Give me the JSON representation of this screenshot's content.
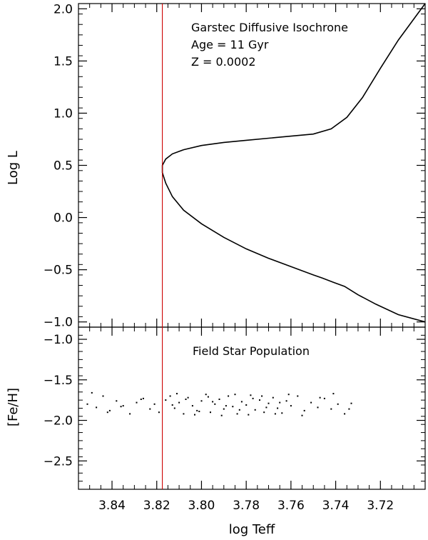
{
  "chart_data": [
    {
      "type": "line",
      "panel": "top",
      "ylabel": "Log L",
      "xlim": [
        3.855,
        3.7
      ],
      "ylim": [
        -1.05,
        2.05
      ],
      "x_reversed": true,
      "yticks": [
        -1.0,
        -0.5,
        0.0,
        0.5,
        1.0,
        1.5,
        2.0
      ],
      "ytick_labels": [
        "−1.0",
        "−0.5",
        "0.0",
        "0.5",
        "1.0",
        "1.5",
        "2.0"
      ],
      "annotations": [
        "Garstec Diffusive Isochrone",
        "Age = 11 Gyr",
        "Z = 0.0002"
      ],
      "series": [
        {
          "color": "#000000",
          "x": [
            3.7,
            3.712,
            3.722,
            3.73,
            3.736,
            3.741,
            3.746,
            3.75,
            3.76,
            3.77,
            3.78,
            3.79,
            3.8,
            3.808,
            3.813,
            3.816,
            3.8175,
            3.8175,
            3.816,
            3.813,
            3.808,
            3.8,
            3.79,
            3.78,
            3.77,
            3.76,
            3.75,
            3.742,
            3.735,
            3.728,
            3.72,
            3.712,
            3.7
          ],
          "y": [
            -1.0,
            -0.93,
            -0.83,
            -0.74,
            -0.66,
            -0.62,
            -0.58,
            -0.55,
            -0.47,
            -0.39,
            -0.3,
            -0.19,
            -0.06,
            0.07,
            0.2,
            0.33,
            0.43,
            0.5,
            0.56,
            0.61,
            0.65,
            0.69,
            0.72,
            0.74,
            0.76,
            0.78,
            0.8,
            0.85,
            0.96,
            1.15,
            1.43,
            1.7,
            2.05
          ]
        }
      ],
      "reference_line": {
        "x": 3.8175,
        "color": "#cc0000"
      }
    },
    {
      "type": "scatter",
      "panel": "bottom",
      "title": "Field Star Population",
      "xlabel": "log Teff",
      "ylabel": "[Fe/H]",
      "xlim": [
        3.855,
        3.7
      ],
      "ylim": [
        -2.85,
        -0.85
      ],
      "x_reversed": true,
      "xticks": [
        3.84,
        3.82,
        3.8,
        3.78,
        3.76,
        3.74,
        3.72
      ],
      "xtick_labels": [
        "3.84",
        "3.82",
        "3.80",
        "3.78",
        "3.76",
        "3.74",
        "3.72"
      ],
      "yticks": [
        -2.5,
        -2.0,
        -1.5,
        -1.0
      ],
      "ytick_labels": [
        "−2.5",
        "−2.0",
        "−1.5",
        "−1.0"
      ],
      "series": [
        {
          "color": "#000000",
          "x": [
            3.851,
            3.847,
            3.844,
            3.841,
            3.838,
            3.835,
            3.832,
            3.829,
            3.826,
            3.823,
            3.821,
            3.819,
            3.816,
            3.814,
            3.812,
            3.81,
            3.808,
            3.806,
            3.804,
            3.802,
            3.8,
            3.798,
            3.796,
            3.794,
            3.792,
            3.79,
            3.788,
            3.786,
            3.784,
            3.782,
            3.78,
            3.778,
            3.776,
            3.774,
            3.772,
            3.77,
            3.768,
            3.766,
            3.764,
            3.762,
            3.76,
            3.757,
            3.754,
            3.751,
            3.748,
            3.745,
            3.742,
            3.739,
            3.736,
            3.733,
            3.849,
            3.842,
            3.836,
            3.827,
            3.811,
            3.803,
            3.797,
            3.791,
            3.785,
            3.779,
            3.773,
            3.767,
            3.761,
            3.755,
            3.747,
            3.741,
            3.734,
            3.813,
            3.807,
            3.801,
            3.795,
            3.789,
            3.783,
            3.777,
            3.771,
            3.765
          ],
          "y": [
            -1.8,
            -1.84,
            -1.7,
            -1.88,
            -1.76,
            -1.82,
            -1.92,
            -1.78,
            -1.73,
            -1.86,
            -1.8,
            -1.9,
            -1.75,
            -1.7,
            -1.85,
            -1.78,
            -1.92,
            -1.72,
            -1.82,
            -1.88,
            -1.76,
            -1.68,
            -1.9,
            -1.8,
            -1.74,
            -1.86,
            -1.7,
            -1.83,
            -1.92,
            -1.77,
            -1.81,
            -1.69,
            -1.87,
            -1.75,
            -1.9,
            -1.79,
            -1.72,
            -1.85,
            -1.91,
            -1.76,
            -1.82,
            -1.7,
            -1.88,
            -1.78,
            -1.84,
            -1.73,
            -1.86,
            -1.8,
            -1.92,
            -1.79,
            -1.66,
            -1.9,
            -1.83,
            -1.74,
            -1.67,
            -1.93,
            -1.71,
            -1.94,
            -1.68,
            -1.93,
            -1.7,
            -1.92,
            -1.68,
            -1.94,
            -1.72,
            -1.67,
            -1.86,
            -1.81,
            -1.74,
            -1.89,
            -1.77,
            -1.82,
            -1.87,
            -1.73,
            -1.84,
            -1.78
          ]
        }
      ]
    }
  ]
}
